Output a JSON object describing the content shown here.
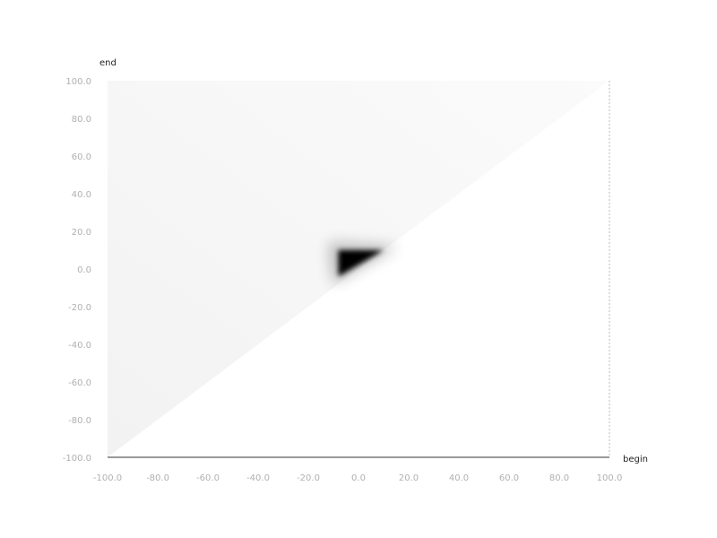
{
  "chart_data": {
    "type": "heatmap",
    "xlabel": "begin",
    "ylabel": "end",
    "xlim": [
      -100,
      100
    ],
    "ylim": [
      -100,
      100
    ],
    "x_ticks": [
      "-100.0",
      "-80.0",
      "-60.0",
      "-40.0",
      "-20.0",
      "0.0",
      "20.0",
      "40.0",
      "60.0",
      "80.0",
      "100.0"
    ],
    "y_ticks": [
      "100.0",
      "80.0",
      "60.0",
      "40.0",
      "20.0",
      "0.0",
      "-20.0",
      "-40.0",
      "-60.0",
      "-80.0",
      "-100.0"
    ],
    "grid": false,
    "region": "upper triangle (end >= begin)",
    "dense_region": {
      "begin": [
        -8,
        10
      ],
      "end": [
        -4,
        10
      ],
      "value": "high"
    },
    "background_value": "low",
    "colors": {
      "low": "#ffffff",
      "high": "#000000",
      "faint": "#f3f3f3"
    }
  }
}
